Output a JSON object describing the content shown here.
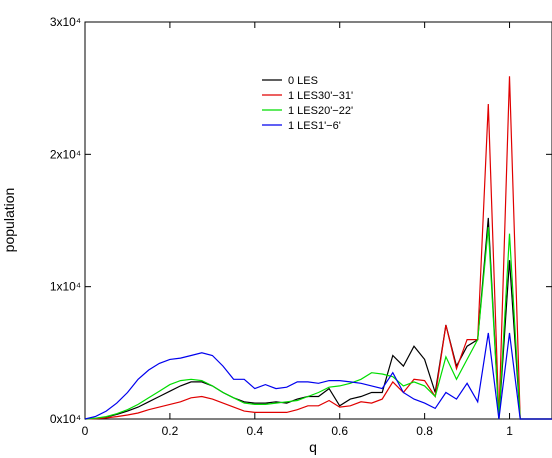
{
  "chart_data": {
    "type": "line",
    "title": "",
    "xlabel": "q",
    "ylabel": "population",
    "xlim": [
      0,
      1.1
    ],
    "ylim": [
      0,
      30000
    ],
    "x_ticks": [
      {
        "value": 0,
        "label": "0"
      },
      {
        "value": 0.2,
        "label": "0.2"
      },
      {
        "value": 0.4,
        "label": "0.4"
      },
      {
        "value": 0.6,
        "label": "0.6"
      },
      {
        "value": 0.8,
        "label": "0.8"
      },
      {
        "value": 1.0,
        "label": "1"
      }
    ],
    "y_ticks": [
      {
        "value": 0,
        "label": "0x10⁴"
      },
      {
        "value": 10000,
        "label": "1x10⁴"
      },
      {
        "value": 20000,
        "label": "2x10⁴"
      },
      {
        "value": 30000,
        "label": "3x10⁴"
      }
    ],
    "grid": false,
    "legend_position": "top-center",
    "x": [
      0,
      0.025,
      0.05,
      0.075,
      0.1,
      0.125,
      0.15,
      0.175,
      0.2,
      0.225,
      0.25,
      0.275,
      0.3,
      0.325,
      0.35,
      0.375,
      0.4,
      0.425,
      0.45,
      0.475,
      0.5,
      0.525,
      0.55,
      0.575,
      0.6,
      0.625,
      0.65,
      0.675,
      0.7,
      0.725,
      0.75,
      0.775,
      0.8,
      0.825,
      0.85,
      0.875,
      0.9,
      0.925,
      0.95,
      0.975,
      1.0,
      1.025,
      1.05,
      1.075,
      1.1
    ],
    "series": [
      {
        "name": "0 LES",
        "color": "#000000",
        "values": [
          0,
          50,
          150,
          350,
          600,
          900,
          1300,
          1700,
          2100,
          2500,
          2800,
          2800,
          2500,
          2000,
          1600,
          1300,
          1200,
          1200,
          1300,
          1200,
          1500,
          1700,
          1700,
          2300,
          1000,
          1500,
          1700,
          2000,
          2000,
          4800,
          4000,
          5500,
          4500,
          2000,
          7100,
          4000,
          5500,
          6000,
          15200,
          0,
          12000,
          0,
          0,
          0,
          0
        ]
      },
      {
        "name": "1 LES30'−31'",
        "color": "#e00000",
        "values": [
          0,
          30,
          80,
          180,
          300,
          450,
          700,
          900,
          1100,
          1300,
          1600,
          1700,
          1500,
          1200,
          900,
          600,
          500,
          500,
          500,
          500,
          700,
          1000,
          1000,
          1400,
          900,
          1000,
          1300,
          1200,
          1500,
          2800,
          2000,
          3000,
          2900,
          1700,
          7100,
          3800,
          6000,
          6000,
          23800,
          0,
          25900,
          0,
          0,
          0,
          0
        ]
      },
      {
        "name": "1 LES20'−22'",
        "color": "#00dd00",
        "values": [
          0,
          60,
          180,
          400,
          700,
          1100,
          1600,
          2100,
          2600,
          2900,
          3000,
          2900,
          2500,
          2000,
          1600,
          1200,
          1100,
          1100,
          1200,
          1300,
          1400,
          1700,
          2000,
          2400,
          2500,
          2700,
          3000,
          3500,
          3400,
          3200,
          2500,
          2800,
          2500,
          1700,
          4700,
          3000,
          4500,
          6000,
          14500,
          0,
          14000,
          0,
          0,
          0,
          0
        ]
      },
      {
        "name": "1 LES1'−6'",
        "color": "#0000ee",
        "values": [
          0,
          200,
          600,
          1200,
          2000,
          3000,
          3700,
          4200,
          4500,
          4600,
          4800,
          5000,
          4800,
          4000,
          3000,
          3000,
          2300,
          2600,
          2300,
          2400,
          2800,
          2800,
          2700,
          2900,
          2900,
          2800,
          2700,
          2500,
          2300,
          3500,
          2000,
          1500,
          1200,
          800,
          2000,
          1500,
          2700,
          1300,
          6500,
          0,
          6500,
          0,
          0,
          0,
          0
        ]
      }
    ]
  }
}
